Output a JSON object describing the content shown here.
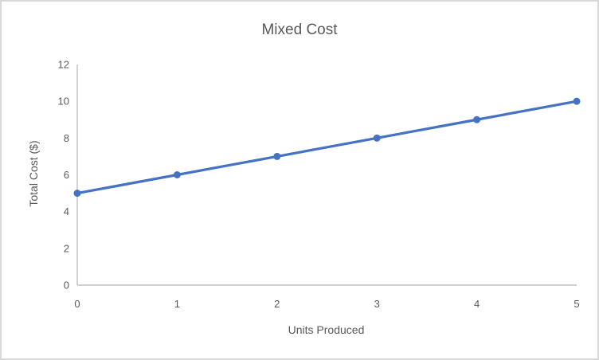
{
  "window": {
    "background": "#FFFFFF",
    "border_color": "#D9D9D9"
  },
  "chart_data": {
    "type": "line",
    "title": "Mixed Cost",
    "xlabel": "Units Produced",
    "ylabel": "Total Cost ($)",
    "x": [
      0,
      1,
      2,
      3,
      4,
      5
    ],
    "values": [
      5,
      6,
      7,
      8,
      9,
      10
    ],
    "xlim": [
      0,
      5
    ],
    "ylim": [
      0,
      12
    ],
    "x_ticks": [
      0,
      1,
      2,
      3,
      4,
      5
    ],
    "y_ticks": [
      0,
      2,
      4,
      6,
      8,
      10,
      12
    ],
    "grid": false,
    "legend": false,
    "marker": "circle",
    "line_color": "#4472C4",
    "marker_color": "#4472C4",
    "axis_line_color": "#BFBFBF",
    "text_color": "#595959"
  }
}
